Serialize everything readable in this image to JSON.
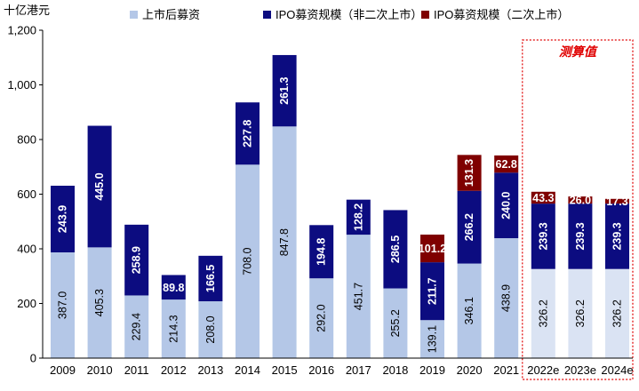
{
  "chart_data": {
    "type": "bar",
    "stacked": true,
    "unit_label": "十亿港元",
    "categories": [
      "2009",
      "2010",
      "2011",
      "2012",
      "2013",
      "2014",
      "2015",
      "2016",
      "2017",
      "2018",
      "2019",
      "2020",
      "2021",
      "2022e",
      "2023e",
      "2024e"
    ],
    "series": [
      {
        "name": "上市后募资",
        "color": "#b4c7e7",
        "estimate_color": "#dae3f3",
        "label_color": "#000000",
        "values": [
          387.0,
          405.3,
          229.4,
          214.3,
          208.0,
          708.0,
          847.8,
          292.0,
          451.7,
          255.2,
          139.1,
          346.1,
          438.9,
          326.2,
          326.2,
          326.2
        ],
        "labels": [
          "387.0",
          "405.3",
          "229.4",
          "214.3",
          "208.0",
          "708.0",
          "847.8",
          "292.0",
          "451.7",
          "255.2",
          "139.1",
          "346.1",
          "438.9",
          "326.2",
          "326.2",
          "326.2"
        ]
      },
      {
        "name": "IPO募资规模（非二次上市）",
        "color": "#0c0c80",
        "estimate_color": "#0c0c80",
        "label_color": "#ffffff",
        "values": [
          243.9,
          445.0,
          258.9,
          89.8,
          166.5,
          227.8,
          261.3,
          194.8,
          128.2,
          286.5,
          211.7,
          266.2,
          240.0,
          239.3,
          239.3,
          239.3
        ],
        "labels": [
          "243.9",
          "445.0",
          "258.9",
          "89.8",
          "166.5",
          "227.8",
          "261.3",
          "194.8",
          "128.2",
          "286.5",
          "211.7",
          "266.2",
          "240.0",
          "239.3",
          "239.3",
          "239.3"
        ]
      },
      {
        "name": "IPO募资规模（二次上市）",
        "color": "#7f0000",
        "estimate_color": "#7f0000",
        "label_color": "#ffffff",
        "values": [
          0,
          0,
          0,
          0,
          0,
          0,
          0,
          0,
          0,
          0,
          101.2,
          131.3,
          62.8,
          43.3,
          26.0,
          17.3
        ],
        "labels": [
          "",
          "",
          "",
          "",
          "",
          "",
          "",
          "",
          "",
          "",
          "101.2",
          "131.3",
          "62.8",
          "43.3",
          "26.0",
          "17.3"
        ]
      }
    ],
    "ylim": [
      0,
      1200
    ],
    "yticks": [
      0,
      200,
      400,
      600,
      800,
      1000,
      1200
    ],
    "ytick_labels": [
      "0",
      "200",
      "400",
      "600",
      "800",
      "1,000",
      "1,200"
    ],
    "estimate_start_index": 13,
    "estimate_label": "测算值",
    "legend_position": "top",
    "grid": false
  }
}
